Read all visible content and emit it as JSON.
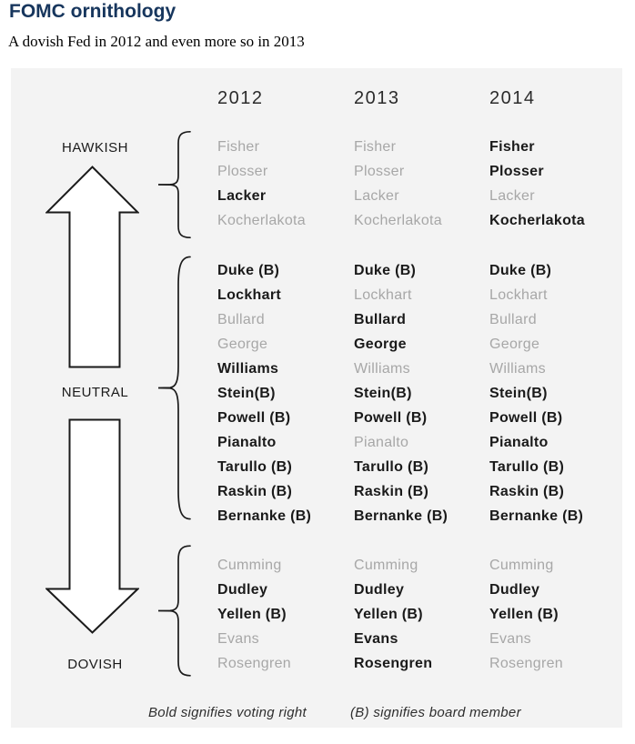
{
  "title": "FOMC ornithology",
  "subtitle": "A dovish Fed in 2012 and even more so in 2013",
  "colors": {
    "title": "#17365d",
    "voting_name": "#1a1a1a",
    "nonvoting_name": "#a7a7a7",
    "panel_bg": "#f3f3f3"
  },
  "chart_data": {
    "type": "table",
    "title": "FOMC ornithology",
    "subtitle": "A dovish Fed in 2012 and even more so in 2013",
    "categories": [
      "2012",
      "2013",
      "2014"
    ],
    "legend_notes": [
      "Bold signifies voting right",
      "(B) signifies board member"
    ],
    "groups": [
      {
        "stance": "HAWKISH",
        "members": [
          {
            "name": "Fisher",
            "voting": [
              false,
              false,
              true
            ]
          },
          {
            "name": "Plosser",
            "voting": [
              false,
              false,
              true
            ]
          },
          {
            "name": "Lacker",
            "voting": [
              true,
              false,
              false
            ]
          },
          {
            "name": "Kocherlakota",
            "voting": [
              false,
              false,
              true
            ]
          }
        ]
      },
      {
        "stance": "NEUTRAL",
        "members": [
          {
            "name": "Duke (B)",
            "voting": [
              true,
              true,
              true
            ]
          },
          {
            "name": "Lockhart",
            "voting": [
              true,
              false,
              false
            ]
          },
          {
            "name": "Bullard",
            "voting": [
              false,
              true,
              false
            ]
          },
          {
            "name": "George",
            "voting": [
              false,
              true,
              false
            ]
          },
          {
            "name": "Williams",
            "voting": [
              true,
              false,
              false
            ]
          },
          {
            "name": "Stein(B)",
            "voting": [
              true,
              true,
              true
            ]
          },
          {
            "name": "Powell (B)",
            "voting": [
              true,
              true,
              true
            ]
          },
          {
            "name": "Pianalto",
            "voting": [
              true,
              false,
              true
            ]
          },
          {
            "name": "Tarullo (B)",
            "voting": [
              true,
              true,
              true
            ]
          },
          {
            "name": "Raskin (B)",
            "voting": [
              true,
              true,
              true
            ]
          },
          {
            "name": "Bernanke (B)",
            "voting": [
              true,
              true,
              true
            ]
          }
        ]
      },
      {
        "stance": "DOVISH",
        "members": [
          {
            "name": "Cumming",
            "voting": [
              false,
              false,
              false
            ]
          },
          {
            "name": "Dudley",
            "voting": [
              true,
              true,
              true
            ]
          },
          {
            "name": "Yellen (B)",
            "voting": [
              true,
              true,
              true
            ]
          },
          {
            "name": "Evans",
            "voting": [
              false,
              true,
              false
            ]
          },
          {
            "name": "Rosengren",
            "voting": [
              false,
              true,
              false
            ]
          }
        ]
      }
    ]
  }
}
